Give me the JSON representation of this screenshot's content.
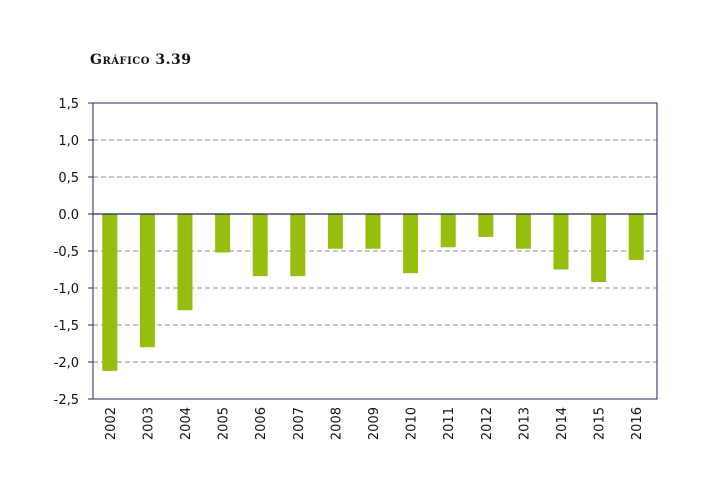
{
  "chart_data": {
    "type": "bar",
    "title": "Gráfico 3.39",
    "xlabel": "",
    "ylabel": "",
    "categories": [
      "2002",
      "2003",
      "2004",
      "2005",
      "2006",
      "2007",
      "2008",
      "2009",
      "2010",
      "2011",
      "2012",
      "2013",
      "2014",
      "2015",
      "2016"
    ],
    "values": [
      -2.12,
      -1.8,
      -1.3,
      -0.52,
      -0.84,
      -0.84,
      -0.47,
      -0.47,
      -0.8,
      -0.45,
      -0.31,
      -0.47,
      -0.75,
      -0.92,
      -0.62
    ],
    "ylim": [
      -2.5,
      1.5
    ],
    "yticks": [
      1.5,
      1.0,
      0.5,
      0.0,
      -0.5,
      -1.0,
      -1.5,
      -2.0,
      -2.5
    ],
    "ytick_labels": [
      "1,5",
      "1,0",
      "0,5",
      "0.0",
      "-0,5",
      "-1,0",
      "-1,5",
      "-2,0",
      "-2,5"
    ],
    "grid": true,
    "legend": "none",
    "colors": {
      "bar": "#97bd0d",
      "axis": "#1f2a5a",
      "grid": "#8d8f9a"
    }
  }
}
